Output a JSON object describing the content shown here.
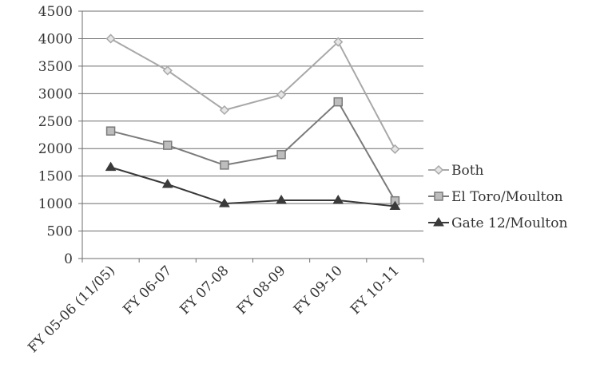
{
  "chart_data": {
    "type": "line",
    "categories": [
      "FY 05-06 (11/05)",
      "FY 06-07",
      "FY 07-08",
      "FY 08-09",
      "FY 09-10",
      "FY 10-11"
    ],
    "ylim": [
      0,
      4500
    ],
    "yticks": [
      0,
      500,
      1000,
      1500,
      2000,
      2500,
      3000,
      3500,
      4000,
      4500
    ],
    "grid": true,
    "legend_position": "right",
    "series": [
      {
        "name": "Both",
        "marker": "diamond",
        "color": "#a8a8a8",
        "values": [
          4000,
          3420,
          2700,
          2980,
          3940,
          1990
        ]
      },
      {
        "name": "El Toro/Moulton",
        "marker": "square",
        "color": "#7a7a7a",
        "values": [
          2320,
          2060,
          1700,
          1890,
          2850,
          1050
        ]
      },
      {
        "name": "Gate 12/Moulton",
        "marker": "triangle",
        "color": "#3a3a3a",
        "values": [
          1660,
          1350,
          1000,
          1060,
          1060,
          950
        ]
      }
    ]
  }
}
